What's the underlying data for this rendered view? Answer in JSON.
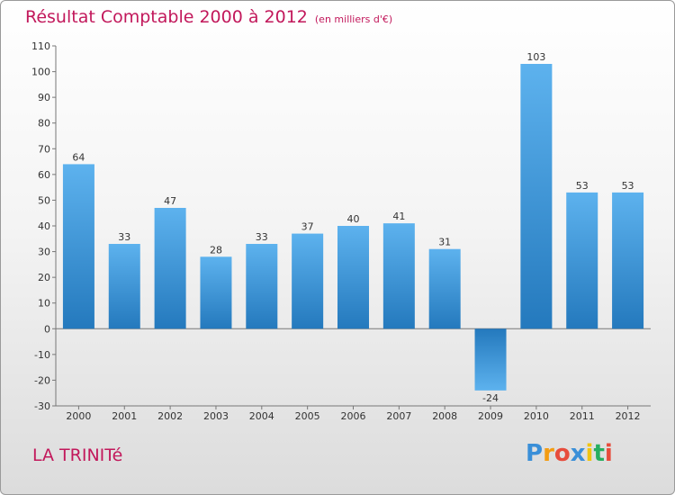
{
  "title": "Résultat Comptable 2000 à 2012",
  "unit": "(en milliers d'€)",
  "commune": "LA TRINITé",
  "logo": {
    "text": "Proxiti",
    "letters": [
      {
        "ch": "P",
        "color": "#3a8fd8"
      },
      {
        "ch": "r",
        "color": "#f39c12"
      },
      {
        "ch": "o",
        "color": "#e74c3c"
      },
      {
        "ch": "x",
        "color": "#3a8fd8"
      },
      {
        "ch": "i",
        "color": "#f1c40f"
      },
      {
        "ch": "t",
        "color": "#27ae60"
      },
      {
        "ch": "i",
        "color": "#e74c3c"
      }
    ]
  },
  "chart_data": {
    "type": "bar",
    "title": "Résultat Comptable 2000 à 2012",
    "ylabel": "(en milliers d'€)",
    "xlabel": "",
    "categories": [
      "2000",
      "2001",
      "2002",
      "2003",
      "2004",
      "2005",
      "2006",
      "2007",
      "2008",
      "2009",
      "2010",
      "2011",
      "2012"
    ],
    "values": [
      64,
      33,
      47,
      28,
      33,
      37,
      40,
      41,
      31,
      -24,
      103,
      53,
      53
    ],
    "ylim": [
      -30,
      110
    ],
    "yticks": [
      -30,
      -20,
      -10,
      0,
      10,
      20,
      30,
      40,
      50,
      60,
      70,
      80,
      90,
      100,
      110
    ],
    "grid": false,
    "bar_color": "#4aa3e6"
  }
}
